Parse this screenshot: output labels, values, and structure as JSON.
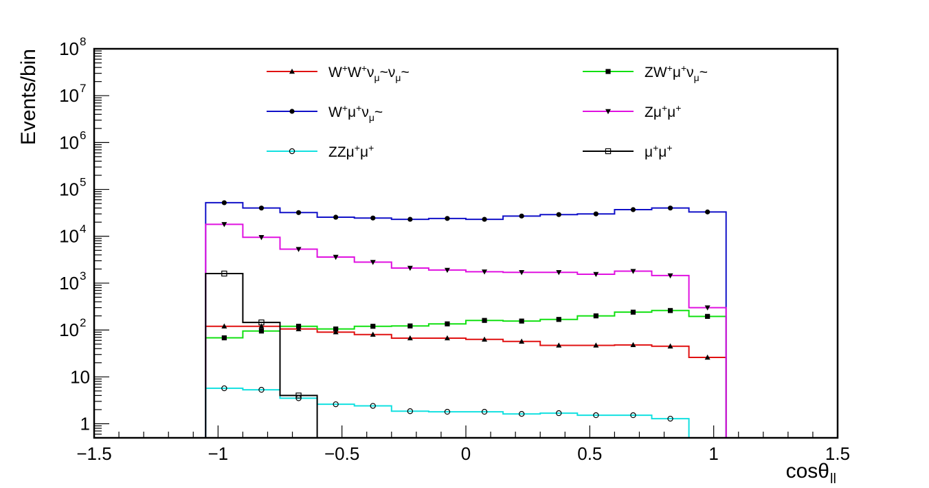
{
  "chart_data": {
    "type": "line",
    "title": "",
    "xlabel": "cosθll",
    "xlabel_main": "cosθ",
    "xlabel_sub": "ll",
    "ylabel": "Events/bin",
    "xlim": [
      -1.5,
      1.5
    ],
    "ylim": [
      0.5,
      100000000
    ],
    "yscale": "log",
    "x_ticks": [
      -1.5,
      -1,
      -0.5,
      0,
      0.5,
      1,
      1.5
    ],
    "x_tick_labels": [
      "−1.5",
      "−1",
      "−0.5",
      "0",
      "0.5",
      "1",
      "1.5"
    ],
    "y_ticks": [
      {
        "value": 1,
        "label": "1"
      },
      {
        "value": 10,
        "label": "10"
      },
      {
        "value": 100,
        "base": "10",
        "exp": "2"
      },
      {
        "value": 1000,
        "base": "10",
        "exp": "3"
      },
      {
        "value": 10000,
        "base": "10",
        "exp": "4"
      },
      {
        "value": 100000,
        "base": "10",
        "exp": "5"
      },
      {
        "value": 1000000,
        "base": "10",
        "exp": "6"
      },
      {
        "value": 10000000,
        "base": "10",
        "exp": "7"
      },
      {
        "value": 100000000,
        "base": "10",
        "exp": "8"
      }
    ],
    "bin_edges": [
      -1.05,
      -0.9,
      -0.75,
      -0.6,
      -0.45,
      -0.3,
      -0.15,
      0,
      0.15,
      0.3,
      0.45,
      0.6,
      0.75,
      0.9,
      1.05
    ],
    "legend": {
      "position": "top",
      "columns": 2
    },
    "series": [
      {
        "name": "W+W+νμ~νμ~",
        "label_parts": [
          [
            "W",
            ""
          ],
          [
            "+",
            "sup"
          ],
          [
            "W",
            ""
          ],
          [
            "+",
            "sup"
          ],
          [
            "ν",
            ""
          ],
          [
            "μ",
            "sub"
          ],
          [
            "~",
            ""
          ],
          [
            "ν",
            ""
          ],
          [
            "μ",
            "sub"
          ],
          [
            "~",
            ""
          ]
        ],
        "color": "#e01010",
        "marker": "triangle-up",
        "values": [
          120,
          120,
          105,
          90,
          80,
          67,
          67,
          63,
          57,
          47,
          47,
          48,
          45,
          26
        ]
      },
      {
        "name": "ZW+μ+νμ~",
        "label_parts": [
          [
            "ZW",
            ""
          ],
          [
            "+",
            "sup"
          ],
          [
            "μ",
            ""
          ],
          [
            "+",
            "sup"
          ],
          [
            "ν",
            ""
          ],
          [
            "μ",
            "sub"
          ],
          [
            "~",
            ""
          ]
        ],
        "color": "#10e010",
        "marker": "square",
        "values": [
          68,
          95,
          120,
          105,
          120,
          122,
          135,
          160,
          155,
          168,
          200,
          240,
          260,
          195
        ]
      },
      {
        "name": "W+μ+νμ~",
        "label_parts": [
          [
            "W",
            ""
          ],
          [
            "+",
            "sup"
          ],
          [
            "μ",
            ""
          ],
          [
            "+",
            "sup"
          ],
          [
            "ν",
            ""
          ],
          [
            "μ",
            "sub"
          ],
          [
            "~",
            ""
          ]
        ],
        "color": "#1010c8",
        "marker": "circle",
        "values": [
          52000,
          40000,
          32000,
          25500,
          24500,
          23000,
          24000,
          23000,
          27000,
          29000,
          30000,
          37000,
          40000,
          33000
        ]
      },
      {
        "name": "Zμ+μ+",
        "label_parts": [
          [
            "Zμ",
            ""
          ],
          [
            "+",
            "sup"
          ],
          [
            "μ",
            ""
          ],
          [
            "+",
            "sup"
          ]
        ],
        "color": "#e010e0",
        "marker": "triangle-down",
        "values": [
          18000,
          9500,
          5300,
          3600,
          2800,
          2100,
          1900,
          1750,
          1700,
          1700,
          1550,
          1800,
          1450,
          300
        ]
      },
      {
        "name": "ZZμ+μ+",
        "label_parts": [
          [
            "ZZμ",
            ""
          ],
          [
            "+",
            "sup"
          ],
          [
            "μ",
            ""
          ],
          [
            "+",
            "sup"
          ]
        ],
        "color": "#10e0e0",
        "marker": "circle-open",
        "values": [
          5.7,
          5.3,
          3.5,
          2.6,
          2.4,
          1.85,
          1.8,
          1.8,
          1.62,
          1.68,
          1.52,
          1.52,
          1.28,
          null
        ]
      },
      {
        "name": "μ+μ+",
        "label_parts": [
          [
            "μ",
            ""
          ],
          [
            "+",
            "sup"
          ],
          [
            "μ",
            ""
          ],
          [
            "+",
            "sup"
          ]
        ],
        "color": "#000000",
        "marker": "square-open",
        "values": [
          1600,
          145,
          4,
          null,
          null,
          null,
          null,
          null,
          null,
          null,
          null,
          null,
          null,
          null
        ]
      }
    ]
  }
}
